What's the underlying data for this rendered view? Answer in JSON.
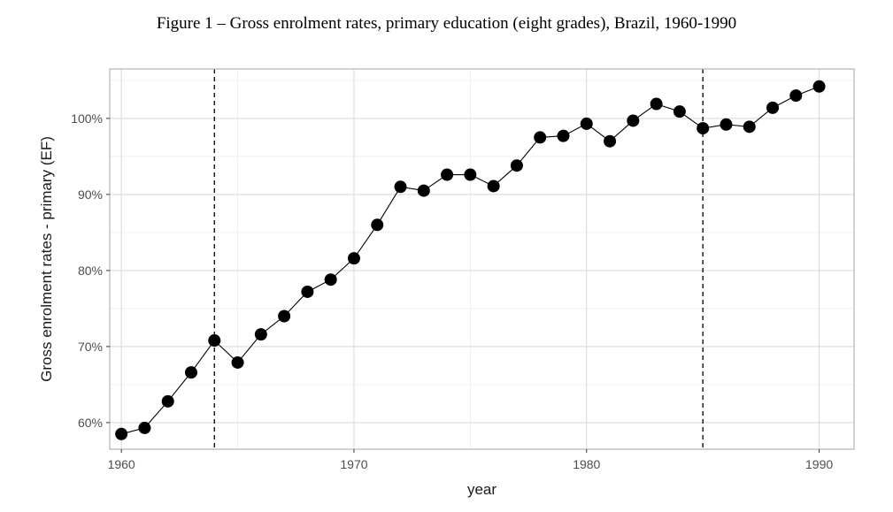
{
  "figure_title": "Figure 1 –  Gross enrolment rates, primary education (eight grades), Brazil, 1960-1990",
  "chart_data": {
    "type": "line",
    "title": "Figure 1 –  Gross enrolment rates, primary education (eight grades), Brazil, 1960-1990",
    "xlabel": "year",
    "ylabel": "Gross enrolment rates - primary (EF)",
    "xlim": [
      1959.5,
      1991.5
    ],
    "ylim": [
      56.5,
      106.5
    ],
    "x_ticks": [
      1960,
      1970,
      1980,
      1990
    ],
    "y_ticks": [
      60,
      70,
      80,
      90,
      100
    ],
    "y_tick_labels": [
      "60%",
      "70%",
      "80%",
      "90%",
      "100%"
    ],
    "grid": true,
    "legend": "none",
    "vlines": [
      1964,
      1985
    ],
    "line_color": "#000000",
    "marker_color": "#000000",
    "panel_border_color": "#b3b3b3",
    "grid_color": "#ebebeb",
    "series": [
      {
        "x": [
          1960,
          1961,
          1962,
          1963,
          1964,
          1965,
          1966,
          1967,
          1968,
          1969,
          1970,
          1971,
          1972,
          1973,
          1974,
          1975,
          1976,
          1977,
          1978,
          1979,
          1980,
          1981,
          1982,
          1983,
          1984,
          1985,
          1986,
          1987,
          1988,
          1989,
          1990
        ],
        "values": [
          58.5,
          59.3,
          62.8,
          66.6,
          70.8,
          67.9,
          71.6,
          74.0,
          77.2,
          78.8,
          81.6,
          86.0,
          91.0,
          90.5,
          92.6,
          92.6,
          91.1,
          93.8,
          97.5,
          97.7,
          99.3,
          97.0,
          99.7,
          101.9,
          100.9,
          98.7,
          99.2,
          98.9,
          101.4,
          103.0,
          104.2
        ]
      }
    ]
  }
}
